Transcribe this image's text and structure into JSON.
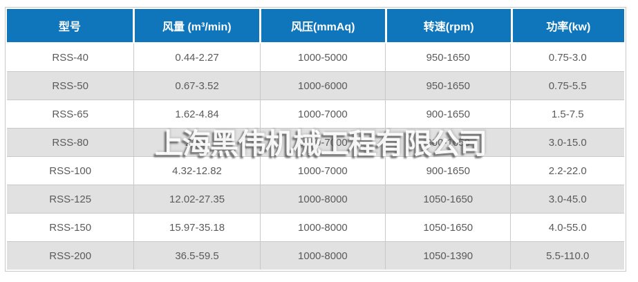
{
  "chart_data": {
    "type": "table",
    "title": "",
    "columns": [
      "型号",
      "风量 (m³/min)",
      "风压(mmAq)",
      "转速(rpm)",
      "功率(kw)"
    ],
    "rows": [
      [
        "RSS-40",
        "0.44-2.27",
        "1000-5000",
        "950-1650",
        "0.75-3.0"
      ],
      [
        "RSS-50",
        "0.67-3.52",
        "1000-6000",
        "950-1650",
        "0.75-5.5"
      ],
      [
        "RSS-65",
        "1.62-4.84",
        "1000-7000",
        "900-1650",
        "1.5-7.5"
      ],
      [
        "RSS-80",
        "2.15-",
        "1000-7000",
        "900-1650",
        "3.0-15.0"
      ],
      [
        "RSS-100",
        "4.32-12.82",
        "1000-7000",
        "900-1650",
        "2.2-22.0"
      ],
      [
        "RSS-125",
        "12.02-27.35",
        "1000-8000",
        "1050-1650",
        "3.0-45.0"
      ],
      [
        "RSS-150",
        "15.97-35.18",
        "1000-8000",
        "1050-1650",
        "4.0-55.0"
      ],
      [
        "RSS-200",
        "36.5-59.5",
        "1000-8000",
        "1050-1390",
        "5.5-110.0"
      ]
    ]
  },
  "watermark": {
    "text": "上海黑伟机械工程有限公司"
  },
  "colors": {
    "header_bg": "#0f76bb",
    "header_text": "#ffffff",
    "row_bg": "#ffffff",
    "row_alt_bg": "#e1e1e1",
    "border": "#c8c8c8",
    "body_text": "#5a5a5a"
  }
}
